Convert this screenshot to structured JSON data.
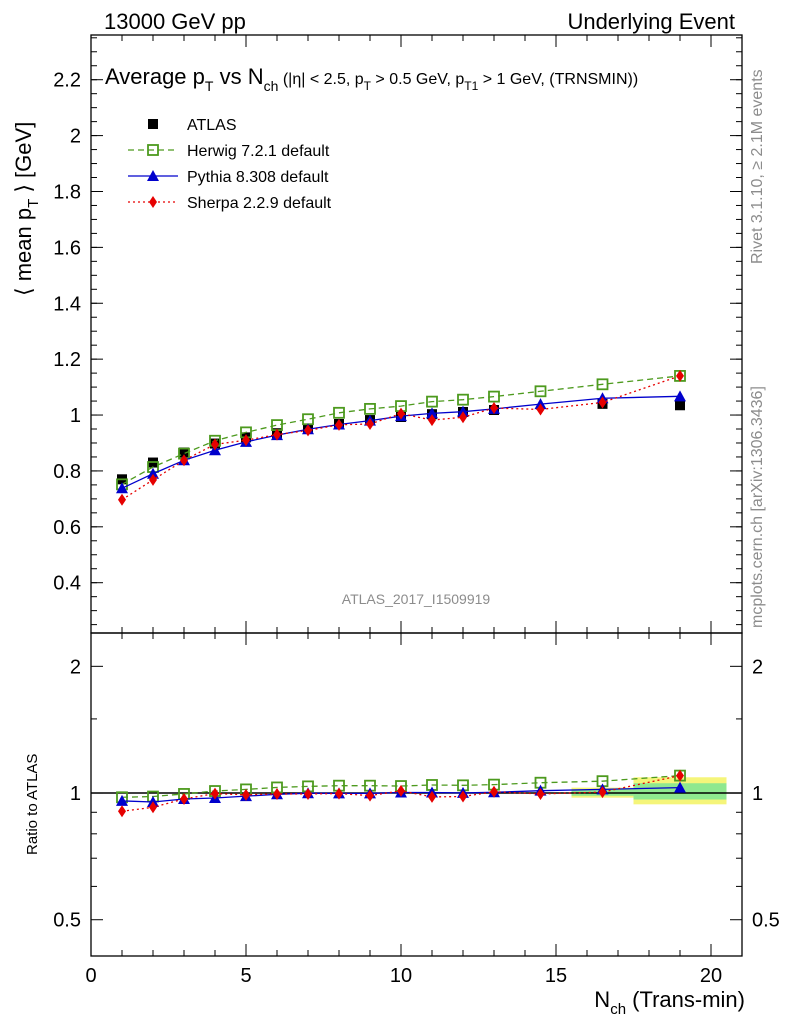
{
  "header": {
    "left": "13000 GeV pp",
    "right": "Underlying Event"
  },
  "side_labels": {
    "rivet": "Rivet 3.1.10, ≥ 2.1M events",
    "mcplots": "mcplots.cern.ch [arXiv:1306.3436]"
  },
  "watermark": "ATLAS_2017_I1509919",
  "chart_data": [
    {
      "type": "scatter",
      "title": "Average p_T vs N_ch (|η| < 2.5, p_T > 0.5 GeV, p_T1 > 1 GeV, (TRNSMIN))",
      "title_parts": {
        "t1": "Average p",
        "t1sub": "T",
        "t2": " vs N",
        "t2sub": "ch",
        "t3": " (|η| < 2.5, p",
        "t3sub": "T",
        "t4": " > 0.5 GeV, p",
        "t4sub": "T1",
        "t5": " > 1 GeV, (TRNSMIN))"
      },
      "ylabel": "⟨ mean p_T ⟩ [GeV]",
      "ylabel_parts": {
        "a": "⟨ mean p",
        "sub": "T",
        "b": " ⟩ [GeV]"
      },
      "xlim": [
        0,
        21
      ],
      "ylim": [
        0.22,
        2.36
      ],
      "yticks": [
        0.4,
        0.6,
        0.8,
        1,
        1.2,
        1.4,
        1.6,
        1.8,
        2,
        2.2
      ],
      "ytick_labels": [
        "0.4",
        "0.6",
        "0.8",
        "1",
        "1.2",
        "1.4",
        "1.6",
        "1.8",
        "2",
        "2.2"
      ],
      "legend_position": "top-left",
      "series": [
        {
          "name": "ATLAS",
          "color": "#000000",
          "marker": "square-filled",
          "x": [
            1,
            2,
            3,
            4,
            5,
            6,
            7,
            8,
            9,
            10,
            11,
            12,
            13,
            16.5,
            19
          ],
          "y": [
            0.77,
            0.83,
            0.866,
            0.898,
            0.92,
            0.935,
            0.95,
            0.968,
            0.982,
            0.993,
            1.003,
            1.011,
            1.018,
            1.04,
            1.035
          ]
        },
        {
          "name": "Herwig 7.2.1 default",
          "color": "#4d9a1e",
          "marker": "square-open",
          "line": "dashed",
          "x": [
            1,
            2,
            3,
            4,
            5,
            6,
            7,
            8,
            9,
            10,
            11,
            12,
            13,
            14.5,
            16.5,
            19
          ],
          "y": [
            0.752,
            0.814,
            0.862,
            0.908,
            0.938,
            0.964,
            0.985,
            1.008,
            1.022,
            1.032,
            1.048,
            1.055,
            1.066,
            1.085,
            1.11,
            1.14
          ]
        },
        {
          "name": "Pythia 8.308 default",
          "color": "#0000cc",
          "marker": "triangle",
          "line": "solid",
          "x": [
            1,
            2,
            3,
            4,
            5,
            6,
            7,
            8,
            9,
            10,
            11,
            12,
            13,
            14.5,
            16.5,
            19
          ],
          "y": [
            0.738,
            0.79,
            0.838,
            0.874,
            0.904,
            0.928,
            0.949,
            0.966,
            0.98,
            0.996,
            1.006,
            1.012,
            1.022,
            1.039,
            1.06,
            1.067
          ]
        },
        {
          "name": "Sherpa 2.2.9 default",
          "color": "#e60000",
          "marker": "diamond",
          "line": "dotted",
          "x": [
            1,
            2,
            3,
            4,
            5,
            6,
            7,
            8,
            9,
            10,
            11,
            12,
            13,
            14.5,
            16.5,
            19
          ],
          "y": [
            0.697,
            0.768,
            0.838,
            0.895,
            0.91,
            0.93,
            0.945,
            0.965,
            0.968,
            1.005,
            0.982,
            0.992,
            1.025,
            1.02,
            1.045,
            1.14
          ]
        }
      ]
    },
    {
      "type": "scatter",
      "ylabel": "Ratio to ATLAS",
      "xlabel": "N_ch (Trans-min)",
      "xlabel_parts": {
        "a": "N",
        "sub": "ch",
        "b": " (Trans-min)"
      },
      "xlim": [
        0,
        21
      ],
      "ylim": [
        0.41,
        2.4
      ],
      "log_y": true,
      "yticks": [
        0.5,
        1,
        2
      ],
      "ytick_labels": [
        "0.5",
        "1",
        "2"
      ],
      "xticks": [
        0,
        5,
        10,
        15,
        20
      ],
      "xtick_labels": [
        "0",
        "5",
        "10",
        "15",
        "20"
      ],
      "series": [
        {
          "name": "Herwig 7.2.1 default",
          "color": "#4d9a1e",
          "x": [
            1,
            2,
            3,
            4,
            5,
            6,
            7,
            8,
            9,
            10,
            11,
            12,
            13,
            14.5,
            16.5,
            19
          ],
          "y": [
            0.977,
            0.981,
            0.995,
            1.011,
            1.02,
            1.031,
            1.037,
            1.041,
            1.041,
            1.039,
            1.045,
            1.043,
            1.047,
            1.058,
            1.067,
            1.1
          ]
        },
        {
          "name": "Pythia 8.308 default",
          "color": "#0000cc",
          "x": [
            1,
            2,
            3,
            4,
            5,
            6,
            7,
            8,
            9,
            10,
            11,
            12,
            13,
            14.5,
            16.5,
            19
          ],
          "y": [
            0.958,
            0.952,
            0.968,
            0.973,
            0.983,
            0.993,
            0.999,
            0.998,
            0.998,
            1.003,
            1.003,
            1.001,
            1.004,
            1.013,
            1.02,
            1.03
          ]
        },
        {
          "name": "Sherpa 2.2.9 default",
          "color": "#e60000",
          "x": [
            1,
            2,
            3,
            4,
            5,
            6,
            7,
            8,
            9,
            10,
            11,
            12,
            13,
            14.5,
            16.5,
            19
          ],
          "y": [
            0.905,
            0.925,
            0.968,
            0.997,
            0.99,
            0.995,
            0.995,
            0.997,
            0.986,
            1.012,
            0.979,
            0.981,
            1.007,
            0.995,
            1.005,
            1.1
          ]
        }
      ],
      "bands": [
        {
          "x": [
            17.5,
            20.5
          ],
          "lo_yellow": 0.94,
          "hi_yellow": 1.09,
          "lo_green": 0.965,
          "hi_green": 1.055
        },
        {
          "x": [
            15.5,
            17.5
          ],
          "lo_yellow": 0.975,
          "hi_yellow": 1.03,
          "lo_green": 0.985,
          "hi_green": 1.02
        }
      ]
    }
  ]
}
